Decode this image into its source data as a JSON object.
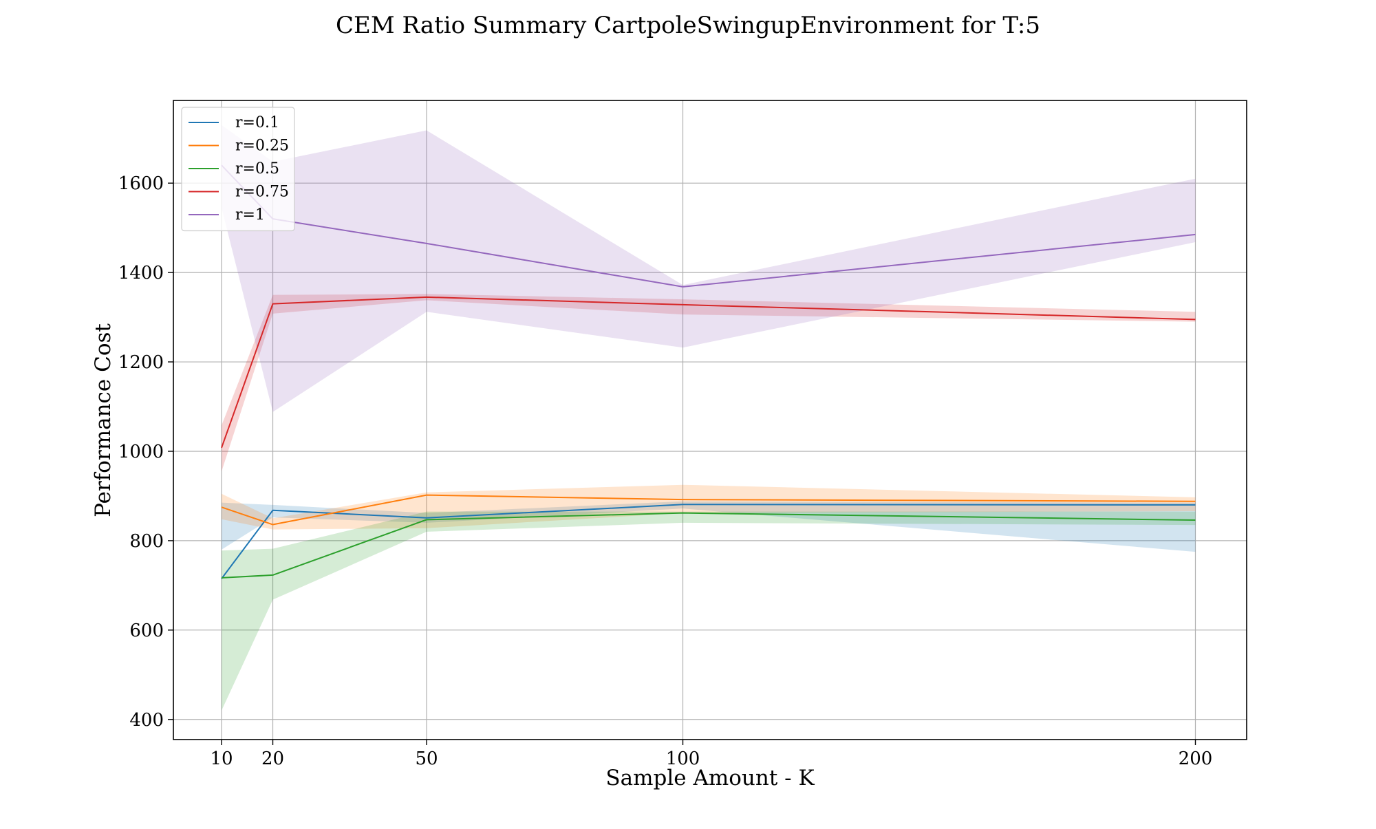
{
  "chart_data": {
    "type": "line",
    "title": "CEM Ratio Summary CartpoleSwingupEnvironment for T:5",
    "xlabel": "Sample Amount - K",
    "ylabel": "Performance Cost",
    "x": [
      10,
      20,
      50,
      100,
      200
    ],
    "x_ticks": [
      10,
      20,
      50,
      100,
      200
    ],
    "y_ticks": [
      400,
      600,
      800,
      1000,
      1200,
      1400,
      1600
    ],
    "xlim": [
      0.6,
      210
    ],
    "ylim": [
      355,
      1785
    ],
    "grid": true,
    "legend_position": "top-left",
    "series": [
      {
        "name": "r=0.1",
        "color": "#1f77b4",
        "values": [
          715,
          868,
          851,
          881,
          880
        ],
        "band_lower": [
          780,
          852,
          840,
          872,
          775
        ],
        "band_upper": [
          885,
          880,
          862,
          888,
          885
        ]
      },
      {
        "name": "r=0.25",
        "color": "#ff7f0e",
        "values": [
          875,
          836,
          902,
          892,
          888
        ],
        "band_lower": [
          848,
          825,
          828,
          862,
          866
        ],
        "band_upper": [
          905,
          850,
          908,
          925,
          897
        ]
      },
      {
        "name": "r=0.5",
        "color": "#2ca02c",
        "values": [
          717,
          723,
          847,
          862,
          846
        ],
        "band_lower": [
          420,
          668,
          820,
          840,
          835
        ],
        "band_upper": [
          778,
          782,
          865,
          865,
          865
        ]
      },
      {
        "name": "r=0.75",
        "color": "#d62728",
        "values": [
          1008,
          1330,
          1345,
          1328,
          1295
        ],
        "band_lower": [
          955,
          1308,
          1338,
          1306,
          1290
        ],
        "band_upper": [
          1058,
          1350,
          1352,
          1340,
          1312
        ]
      },
      {
        "name": "r=1",
        "color": "#9467bd",
        "values": [
          1640,
          1520,
          1465,
          1368,
          1485
        ],
        "band_lower": [
          1545,
          1088,
          1312,
          1232,
          1468
        ],
        "band_upper": [
          1730,
          1648,
          1718,
          1372,
          1610
        ]
      }
    ]
  }
}
